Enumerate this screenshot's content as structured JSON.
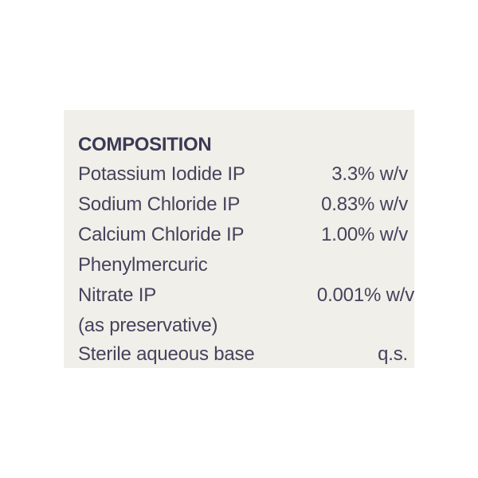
{
  "label": {
    "title": "COMPOSITION",
    "rows": [
      {
        "name": "Potassium Iodide IP",
        "value": "3.3% w/v"
      },
      {
        "name": "Sodium Chloride IP",
        "value": "0.83% w/v"
      },
      {
        "name": "Calcium Chloride IP",
        "value": "1.00% w/v"
      },
      {
        "name": "Phenylmercuric",
        "value": ""
      },
      {
        "name": "Nitrate IP",
        "value": "0.001% w/v"
      },
      {
        "name": "(as preservative)",
        "value": ""
      },
      {
        "name": "Sterile aqueous base",
        "value": "q.s."
      }
    ],
    "colors": {
      "background": "#f1efe9",
      "text": "#44435c"
    }
  }
}
